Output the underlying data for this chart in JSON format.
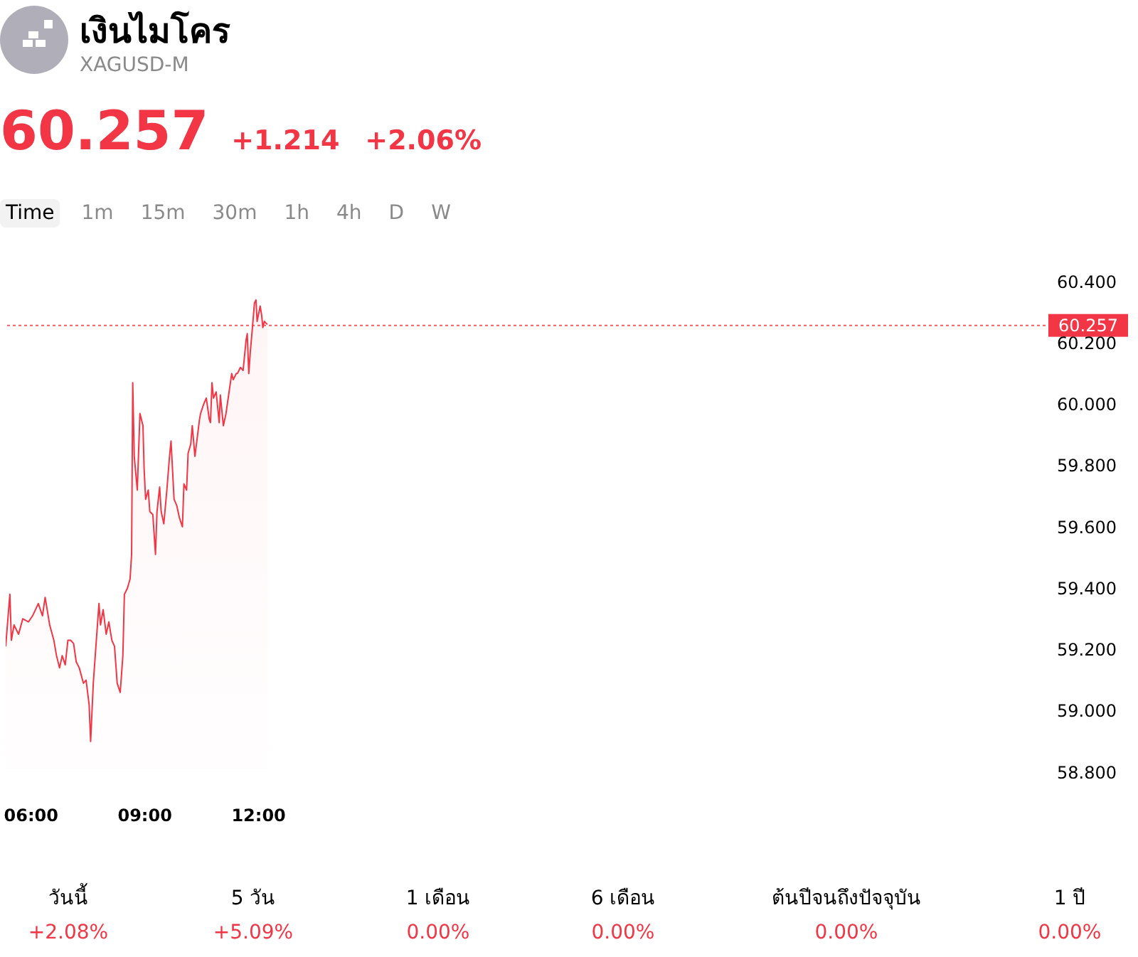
{
  "chart_data": {
    "type": "area",
    "title": "เงินไมโคร",
    "subtitle": "XAGUSD-M",
    "annotations": [
      "60.257",
      "+1.214",
      "+2.06%",
      "Time",
      "1m",
      "15m",
      "30m",
      "1h",
      "4h",
      "D",
      "W",
      "วันนี้",
      "+2.08%",
      "5 วัน",
      "+5.09%",
      "1 เดือน",
      "0.00%",
      "6 เดือน",
      "0.00%",
      "ต้นปีจนถึงปัจจุบัน",
      "0.00%",
      "1 ปี",
      "0.00%"
    ],
    "x": [
      5.33,
      5.44,
      5.48,
      5.55,
      5.67,
      5.78,
      5.93,
      6.04,
      6.19,
      6.3,
      6.37,
      6.49,
      6.6,
      6.67,
      6.75,
      6.82,
      6.9,
      6.97,
      7.04,
      7.12,
      7.19,
      7.27,
      7.38,
      7.45,
      7.53,
      7.57,
      7.64,
      7.72,
      7.79,
      7.83,
      7.9,
      7.98,
      8.05,
      8.13,
      8.2,
      8.27,
      8.35,
      8.42,
      8.46,
      8.54,
      8.61,
      8.65,
      8.68,
      8.72,
      8.8,
      8.87,
      8.95,
      8.98,
      9.02,
      9.09,
      9.13,
      9.21,
      9.28,
      9.32,
      9.39,
      9.43,
      9.5,
      9.58,
      9.65,
      9.69,
      9.77,
      9.84,
      9.91,
      9.99,
      10.03,
      10.1,
      10.14,
      10.21,
      10.25,
      10.32,
      10.44,
      10.47,
      10.55,
      10.62,
      10.7,
      10.73,
      10.77,
      10.81,
      10.88,
      10.96,
      10.99,
      11.07,
      11.14,
      11.22,
      11.29,
      11.33,
      11.41,
      11.44,
      11.52,
      11.59,
      11.63,
      11.67,
      11.7,
      11.74,
      11.78,
      11.85,
      11.89,
      11.93,
      11.96,
      12.04,
      12.08,
      12.11,
      12.15,
      12.23
    ],
    "series": [
      {
        "color": "#f23645",
        "values": [
          59.21,
          59.38,
          59.23,
          59.28,
          59.25,
          59.3,
          59.29,
          59.31,
          59.35,
          59.31,
          59.37,
          59.28,
          59.23,
          59.18,
          59.14,
          59.18,
          59.15,
          59.23,
          59.23,
          59.22,
          59.16,
          59.14,
          59.09,
          59.1,
          59.02,
          58.9,
          59.09,
          59.23,
          59.35,
          59.28,
          59.33,
          59.25,
          59.29,
          59.23,
          59.21,
          59.09,
          59.06,
          59.18,
          59.38,
          59.4,
          59.43,
          59.51,
          60.07,
          59.83,
          59.72,
          59.97,
          59.93,
          59.79,
          59.69,
          59.72,
          59.65,
          59.64,
          59.51,
          59.65,
          59.73,
          59.65,
          59.61,
          59.72,
          59.83,
          59.88,
          59.69,
          59.67,
          59.63,
          59.6,
          59.74,
          59.72,
          59.84,
          59.87,
          59.93,
          59.83,
          59.95,
          59.97,
          60.0,
          60.02,
          59.95,
          59.94,
          60.07,
          60.02,
          60.04,
          59.94,
          60.03,
          59.93,
          59.97,
          60.04,
          60.1,
          60.08,
          60.1,
          60.1,
          60.12,
          60.11,
          60.16,
          60.21,
          60.23,
          60.1,
          60.17,
          60.27,
          60.33,
          60.34,
          60.27,
          60.32,
          60.29,
          60.25,
          60.27,
          60.26
        ]
      }
    ],
    "xlim": [
      5.33,
      32.75
    ],
    "xticks": [
      {
        "value": 6,
        "label": "06:00"
      },
      {
        "value": 9,
        "label": "09:00"
      },
      {
        "value": 12,
        "label": "12:00"
      }
    ],
    "ylim": [
      58.8,
      60.4
    ],
    "yticks": [
      {
        "value": 58.8,
        "label": "58.800"
      },
      {
        "value": 59,
        "label": "59.000"
      },
      {
        "value": 59.2,
        "label": "59.200"
      },
      {
        "value": 59.4,
        "label": "59.400"
      },
      {
        "value": 59.6,
        "label": "59.600"
      },
      {
        "value": 59.8,
        "label": "59.800"
      },
      {
        "value": 60,
        "label": "60.000"
      },
      {
        "value": 60.2,
        "label": "60.200"
      },
      {
        "value": 60.4,
        "label": "60.400"
      }
    ],
    "ref_lines": [
      {
        "axis": "y",
        "value": 60.257,
        "label": "60.257",
        "color": "#f23645",
        "line_style": "dotted"
      }
    ],
    "grid": false,
    "legend": false
  }
}
